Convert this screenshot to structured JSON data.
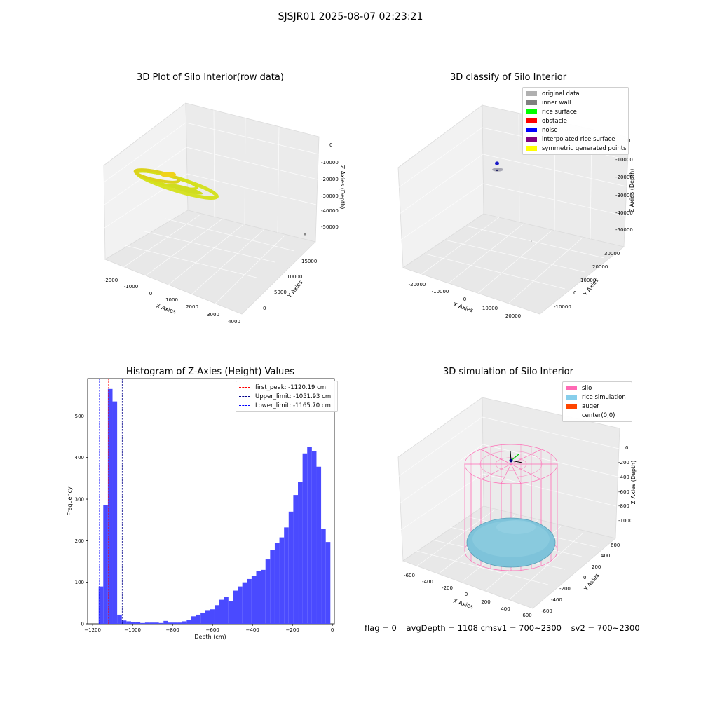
{
  "suptitle": "SJSJR01 2025-08-07 02:23:21",
  "colors": {
    "original": "#b0b0b0",
    "inner_wall": "#808080",
    "rice_surface": "#00ff00",
    "obstacle": "#ff0000",
    "noise": "#0000ff",
    "interp": "#800080",
    "symmetric": "#ffff00",
    "hist_bar": "#4a4aff",
    "silo": "#ff69b4",
    "rice_sim": "#87ceeb",
    "auger": "#ff4500"
  },
  "chart_data": [
    {
      "type": "scatter",
      "title": "3D Plot of Silo Interior(row data)",
      "xlabel": "X Axies",
      "ylabel": "Y Axies",
      "zlabel": "Z Axies (Depth)",
      "x_ticks": [
        "-2000",
        "-1000",
        "0",
        "1000",
        "2000",
        "3000",
        "4000"
      ],
      "y_ticks": [
        "0",
        "5000",
        "10000",
        "15000"
      ],
      "z_ticks": [
        "0",
        "-10000",
        "-20000",
        "-30000",
        "-40000",
        "-50000"
      ],
      "series": [
        {
          "name": "symmetric generated points",
          "color": "#d4e01a"
        },
        {
          "name": "original data",
          "color": "#b0b0b0"
        }
      ]
    },
    {
      "type": "scatter",
      "title": "3D classify of Silo Interior",
      "xlabel": "X Axies",
      "ylabel": "Y Axies",
      "zlabel": "Z Axies (Depth)",
      "x_ticks": [
        "-20000",
        "-10000",
        "0",
        "10000",
        "20000"
      ],
      "y_ticks": [
        "-10000",
        "0",
        "10000",
        "20000",
        "30000"
      ],
      "z_ticks": [
        "0",
        "-10000",
        "-20000",
        "-30000",
        "-40000",
        "-50000"
      ],
      "legend": [
        "original data",
        "inner wall",
        "rice surface",
        "obstacle",
        "noise",
        "interpolated rice surface",
        "symmetric generated points"
      ]
    },
    {
      "type": "bar",
      "title": "Histogram of Z-Axies (Height) Values",
      "xlabel": "Depth (cm)",
      "ylabel": "Frequency",
      "xlim": [
        -1225,
        10
      ],
      "ylim": [
        0,
        590
      ],
      "x_ticks": [
        -1200,
        -1000,
        -800,
        -600,
        -400,
        -200,
        0
      ],
      "y_ticks": [
        0,
        100,
        200,
        300,
        400,
        500
      ],
      "bin_start": -1170,
      "bin_width": 23.2,
      "values": [
        90,
        285,
        565,
        535,
        22,
        8,
        6,
        5,
        4,
        2,
        3,
        3,
        3,
        2,
        7,
        3,
        3,
        3,
        6,
        10,
        18,
        22,
        27,
        33,
        35,
        45,
        58,
        65,
        55,
        80,
        90,
        100,
        108,
        115,
        128,
        130,
        155,
        178,
        195,
        208,
        232,
        270,
        310,
        342,
        410,
        425,
        415,
        378,
        228,
        197
      ],
      "lines": [
        {
          "label": "first_peak: -1120.19 cm",
          "x": -1120.19,
          "color": "#ff0000"
        },
        {
          "label": "Upper_limit: -1051.93 cm",
          "x": -1051.93,
          "color": "#00008b"
        },
        {
          "label": "Lower_limit: -1165.70 cm",
          "x": -1165.7,
          "color": "#0000ff"
        }
      ]
    },
    {
      "type": "scatter",
      "title": "3D simulation of Silo Interior",
      "xlabel": "X Axies",
      "ylabel": "Y Axies",
      "zlabel": "Z Axies (Depth)",
      "x_ticks": [
        "-600",
        "-400",
        "-200",
        "0",
        "200",
        "400",
        "600"
      ],
      "y_ticks": [
        "-600",
        "-400",
        "-200",
        "0",
        "200",
        "400",
        "600"
      ],
      "z_ticks": [
        "0",
        "-200",
        "-400",
        "-600",
        "-800",
        "-1000"
      ],
      "legend": [
        "silo",
        "rice simulation",
        "auger",
        "center(0,0)"
      ]
    }
  ],
  "footer": {
    "flag": "flag = 0",
    "avg": "avgDepth = 1108 cmsv1 = 700~2300",
    "sv2": "sv2 = 700~2300"
  }
}
